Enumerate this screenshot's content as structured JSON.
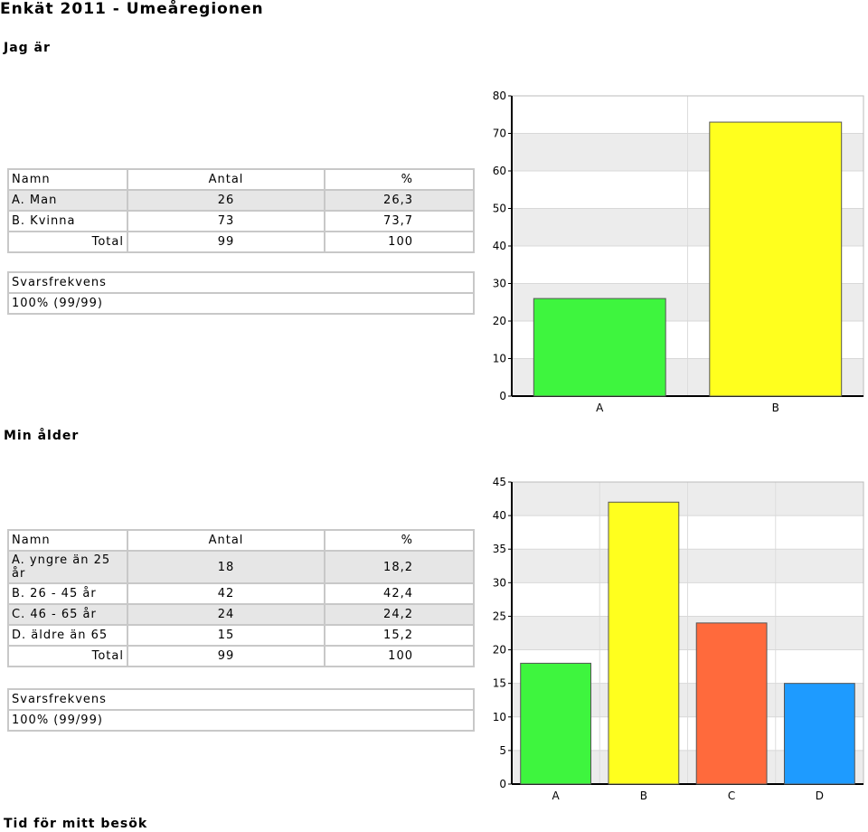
{
  "title": "Enkät 2011 - Umeåregionen",
  "sections": [
    {
      "heading": "Jag är",
      "table": {
        "header": [
          "Namn",
          "Antal",
          "%"
        ],
        "rows": [
          [
            "A. Man",
            "26",
            "26,3"
          ],
          [
            "B. Kvinna",
            "73",
            "73,7"
          ]
        ],
        "total": [
          "Total",
          "99",
          "100"
        ]
      },
      "response": {
        "header": "Svarsfrekvens",
        "value": "100% (99/99)"
      }
    },
    {
      "heading": "Min ålder",
      "table": {
        "header": [
          "Namn",
          "Antal",
          "%"
        ],
        "rows": [
          [
            "A. yngre än 25 år",
            "18",
            "18,2"
          ],
          [
            "B. 26 - 45 år",
            "42",
            "42,4"
          ],
          [
            "C. 46 - 65 år",
            "24",
            "24,2"
          ],
          [
            "D. äldre än 65",
            "15",
            "15,2"
          ]
        ],
        "total": [
          "Total",
          "99",
          "100"
        ]
      },
      "response": {
        "header": "Svarsfrekvens",
        "value": "100% (99/99)"
      }
    }
  ],
  "footer_heading": "Tid för mitt besök",
  "chart_data": [
    {
      "type": "bar",
      "categories": [
        "A",
        "B"
      ],
      "values": [
        26,
        73
      ],
      "colors": [
        "#3ef53e",
        "#ffff1e"
      ],
      "ylim": [
        0,
        80
      ],
      "yticks": [
        0,
        10,
        20,
        30,
        40,
        50,
        60,
        70,
        80
      ],
      "grid": true
    },
    {
      "type": "bar",
      "categories": [
        "A",
        "B",
        "C",
        "D"
      ],
      "values": [
        18,
        42,
        24,
        15
      ],
      "colors": [
        "#3ef53e",
        "#ffff1e",
        "#ff6a3c",
        "#1e9bff"
      ],
      "ylim": [
        0,
        45
      ],
      "yticks": [
        0,
        5,
        10,
        15,
        20,
        25,
        30,
        35,
        40,
        45
      ],
      "grid": true
    }
  ]
}
